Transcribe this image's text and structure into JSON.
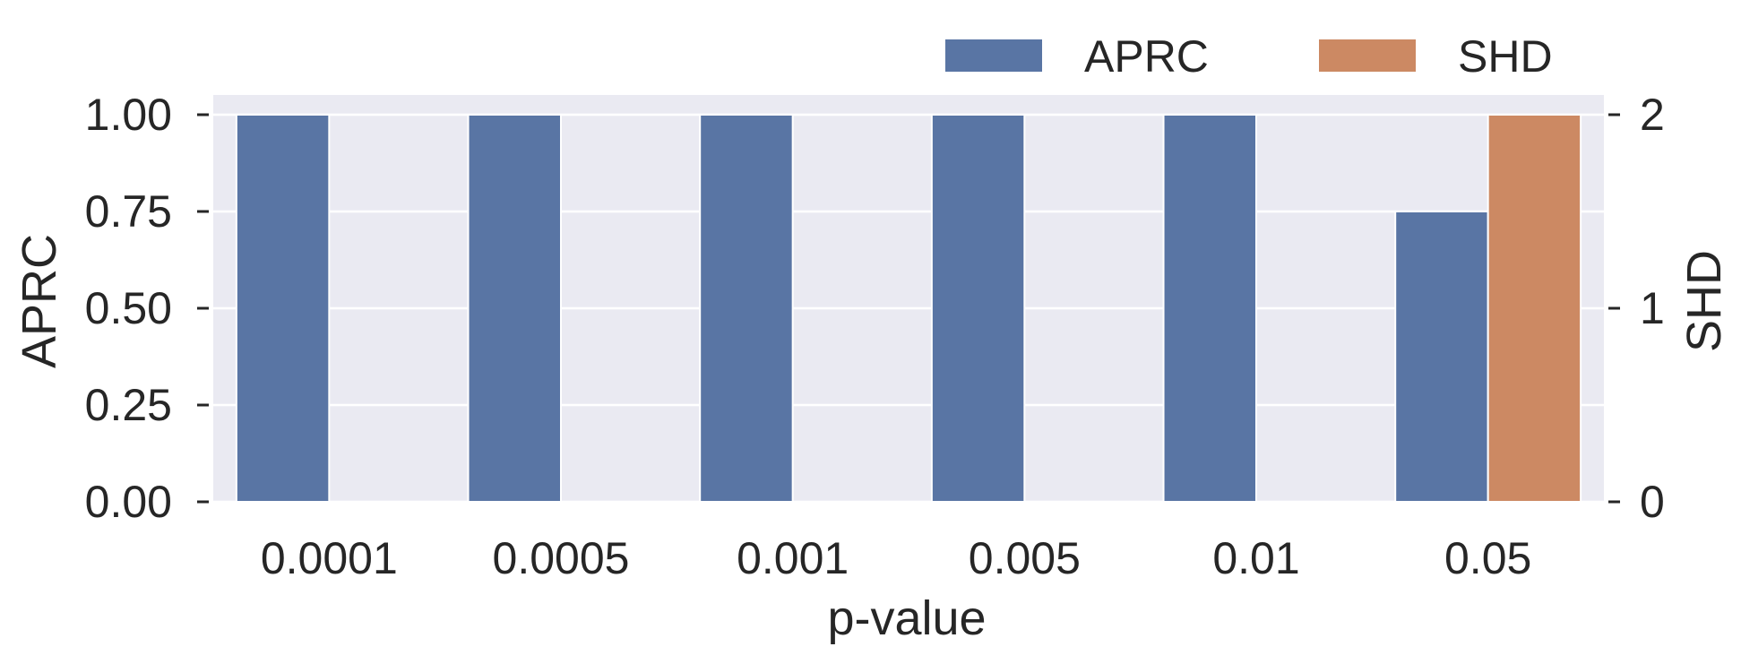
{
  "chart_data": {
    "type": "bar",
    "categories": [
      "0.0001",
      "0.0005",
      "0.001",
      "0.005",
      "0.01",
      "0.05"
    ],
    "series": [
      {
        "name": "APRC",
        "axis": "left",
        "values": [
          1.0,
          1.0,
          1.0,
          1.0,
          1.0,
          0.75
        ],
        "color": "#5975a4"
      },
      {
        "name": "SHD",
        "axis": "right",
        "values": [
          0,
          0,
          0,
          0,
          0,
          2
        ],
        "color": "#cc8963"
      }
    ],
    "xlabel": "p-value",
    "ylabel": "APRC",
    "ylabel_right": "SHD",
    "ylim": [
      0,
      1
    ],
    "ylim_right": [
      0,
      2
    ],
    "yticks": [
      "0.00",
      "0.25",
      "0.50",
      "0.75",
      "1.00"
    ],
    "yticks_right": [
      "0",
      "1",
      "2"
    ],
    "grid": true,
    "legend_position": "top-right",
    "background_color": "#eaeaf2"
  }
}
